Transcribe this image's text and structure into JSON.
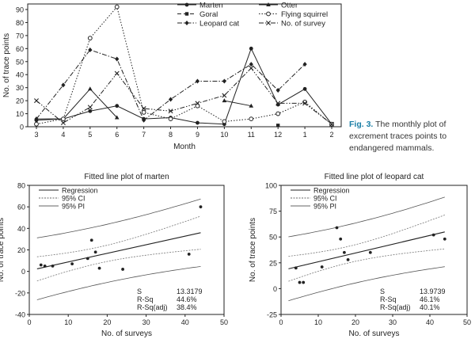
{
  "caption": {
    "label": "Fig. 3.",
    "text": "The monthly plot of excrement traces points to endangered mammals."
  },
  "colors": {
    "line": "#222222",
    "caption_label": "#1b7fa6"
  },
  "chart_data": [
    {
      "type": "line",
      "xlabel": "Month",
      "ylabel": "No. of trace points",
      "categories": [
        "3",
        "4",
        "5",
        "6",
        "7",
        "8",
        "9",
        "10",
        "11",
        "12",
        "1",
        "2"
      ],
      "ylim": [
        0,
        90
      ],
      "yticks": [
        0,
        10,
        20,
        30,
        40,
        50,
        60,
        70,
        80,
        90
      ],
      "legend_placement": "top-right",
      "series": [
        {
          "name": "Marten",
          "marker": "circle",
          "dash": "solid",
          "values": [
            5,
            6,
            12,
            16,
            6,
            7,
            3,
            2,
            60,
            17,
            29,
            2
          ]
        },
        {
          "name": "Otter",
          "marker": "triangle",
          "dash": "solid",
          "values": [
            6,
            6,
            29,
            7,
            null,
            null,
            null,
            20,
            16,
            null,
            null,
            null
          ]
        },
        {
          "name": "Goral",
          "marker": "square",
          "dash": "dashed",
          "values": [
            null,
            null,
            null,
            null,
            null,
            null,
            null,
            null,
            null,
            1,
            null,
            null
          ]
        },
        {
          "name": "Flying squirrel",
          "marker": "open-circle",
          "dash": "dotted",
          "values": [
            2,
            6,
            68,
            92,
            11,
            6,
            16,
            4,
            6,
            10,
            19,
            2
          ]
        },
        {
          "name": "Leopard cat",
          "marker": "diamond",
          "dash": "dashdot",
          "values": [
            6,
            32,
            59,
            52,
            5,
            21,
            35,
            35,
            48,
            28,
            48,
            null
          ]
        },
        {
          "name": "No. of survey",
          "marker": "x",
          "dash": "dashdotdot",
          "values": [
            20,
            3,
            15,
            41,
            14,
            12,
            18,
            24,
            45,
            18,
            18,
            2
          ]
        }
      ]
    },
    {
      "type": "scatter",
      "title": "Fitted line plot of marten",
      "xlabel": "No. of surveys",
      "ylabel": "No. of trace points",
      "xlim": [
        0,
        50
      ],
      "ylim": [
        -40,
        80
      ],
      "xticks": [
        0,
        10,
        20,
        30,
        40,
        50
      ],
      "yticks": [
        -40,
        -20,
        0,
        20,
        40,
        60,
        80
      ],
      "legend": [
        "Regression",
        "95% CI",
        "95% PI"
      ],
      "legend_placement": "top-left",
      "points": [
        [
          3,
          6
        ],
        [
          4,
          5
        ],
        [
          6,
          5
        ],
        [
          11,
          7
        ],
        [
          15,
          12
        ],
        [
          16,
          29
        ],
        [
          17,
          18
        ],
        [
          18,
          3
        ],
        [
          24,
          2
        ],
        [
          41,
          16
        ],
        [
          44,
          60
        ]
      ],
      "regression": {
        "intercept": 0.79,
        "slope": 0.8
      },
      "ci_half_width_at_mean": 7.5,
      "pi_half_width_at_mean": 27,
      "stats": [
        {
          "label": "S",
          "value": "13.3179"
        },
        {
          "label": "R-Sq",
          "value": "44.6%"
        },
        {
          "label": "R-Sq(adj)",
          "value": "38.4%"
        }
      ]
    },
    {
      "type": "scatter",
      "title": "Fitted line plot of leopard cat",
      "xlabel": "No. of surveys",
      "ylabel": "No. of trace points",
      "xlim": [
        0,
        50
      ],
      "ylim": [
        -25,
        100
      ],
      "xticks": [
        0,
        10,
        20,
        30,
        40,
        50
      ],
      "yticks": [
        -25,
        0,
        25,
        50,
        75,
        100
      ],
      "legend": [
        "Regression",
        "95% CI",
        "95% PI"
      ],
      "legend_placement": "top-left",
      "points": [
        [
          4,
          20
        ],
        [
          5,
          6
        ],
        [
          6,
          6
        ],
        [
          11,
          21
        ],
        [
          15,
          59
        ],
        [
          16,
          48
        ],
        [
          17,
          35
        ],
        [
          18,
          28
        ],
        [
          24,
          35
        ],
        [
          41,
          52
        ],
        [
          44,
          48
        ]
      ],
      "regression": {
        "intercept": 17.5,
        "slope": 0.85
      },
      "ci_half_width_at_mean": 8,
      "pi_half_width_at_mean": 29,
      "stats": [
        {
          "label": "S",
          "value": "13.9739"
        },
        {
          "label": "R-Sq",
          "value": "46.1%"
        },
        {
          "label": "R-Sq(adj)",
          "value": "40.1%"
        }
      ]
    }
  ]
}
